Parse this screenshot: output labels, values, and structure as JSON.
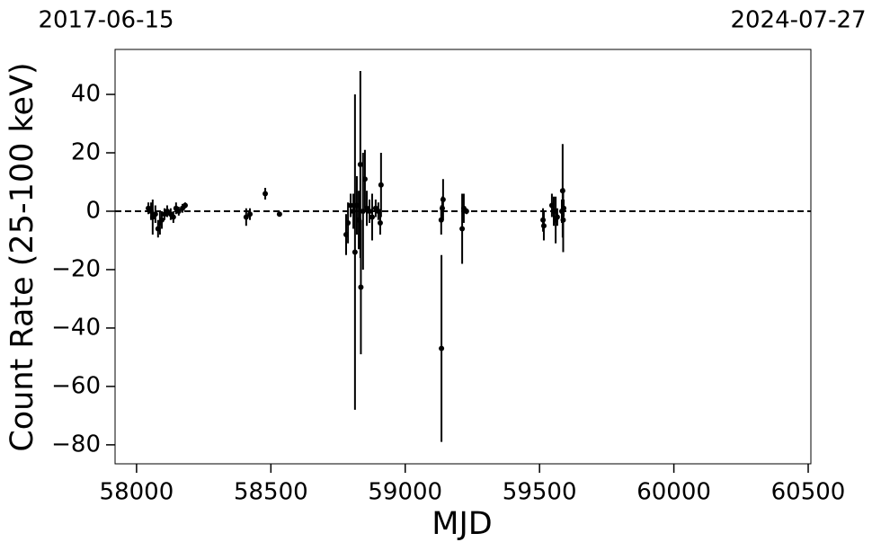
{
  "chart_data": {
    "type": "errorbar-scatter",
    "date_labels": [
      "2017-06-15",
      "2024-07-27"
    ],
    "xlabel": "MJD",
    "ylabel": "Count Rate (25-100 keV)",
    "xlim": [
      57920,
      60510
    ],
    "ylim": [
      -86.5,
      55.4
    ],
    "xticks": [
      58000,
      58500,
      59000,
      59500,
      60000,
      60500
    ],
    "yticks": [
      {
        "value": -80,
        "label": "−80"
      },
      {
        "value": -60,
        "label": "−60"
      },
      {
        "value": -40,
        "label": "−40"
      },
      {
        "value": -20,
        "label": "−20"
      },
      0,
      20,
      40
    ],
    "hline": 0,
    "color": "#000000",
    "series": [
      {
        "name": "Count rate",
        "x": [
          58044,
          58054,
          58060,
          58070,
          58080,
          58087,
          58094,
          58104,
          58114,
          58127,
          58137,
          58147,
          58157,
          58171,
          58181,
          58408,
          58422,
          58479,
          58532,
          58780,
          58787,
          58797,
          58807,
          58813,
          58820,
          58827,
          58833,
          58835,
          58843,
          58850,
          58857,
          58867,
          58877,
          58890,
          58900,
          58907,
          58910,
          59135,
          59134,
          59138,
          59141,
          59212,
          59218,
          59228,
          59513,
          59516,
          59546,
          59553,
          59560,
          59566,
          59583,
          59586,
          59588,
          59590
        ],
        "values": [
          1,
          0,
          -2,
          -1,
          -6,
          -4,
          -3,
          -1,
          0,
          -1,
          -2,
          1,
          0,
          1,
          2,
          -2,
          -1,
          6,
          -1,
          -8,
          -4,
          2,
          0,
          -14,
          2,
          -3,
          16,
          -26,
          0,
          11,
          1,
          0,
          -2,
          1,
          0,
          -4,
          9,
          -47,
          -3,
          1,
          4,
          -6,
          1,
          0,
          -3,
          -5,
          2,
          0,
          -3,
          -2,
          0,
          7,
          -3,
          1
        ],
        "errors": [
          2,
          3,
          6,
          3,
          3,
          4,
          3,
          2,
          2,
          2,
          2,
          2,
          1.5,
          1.5,
          1,
          3,
          2,
          2,
          0.5,
          7,
          7,
          4,
          6,
          54,
          10,
          10,
          32,
          23,
          20,
          10,
          6,
          4,
          8,
          3,
          3,
          4,
          11,
          32,
          5,
          4,
          7,
          12,
          5,
          1,
          4,
          5,
          4,
          5,
          8,
          3,
          4,
          16,
          11,
          3
        ]
      }
    ]
  }
}
